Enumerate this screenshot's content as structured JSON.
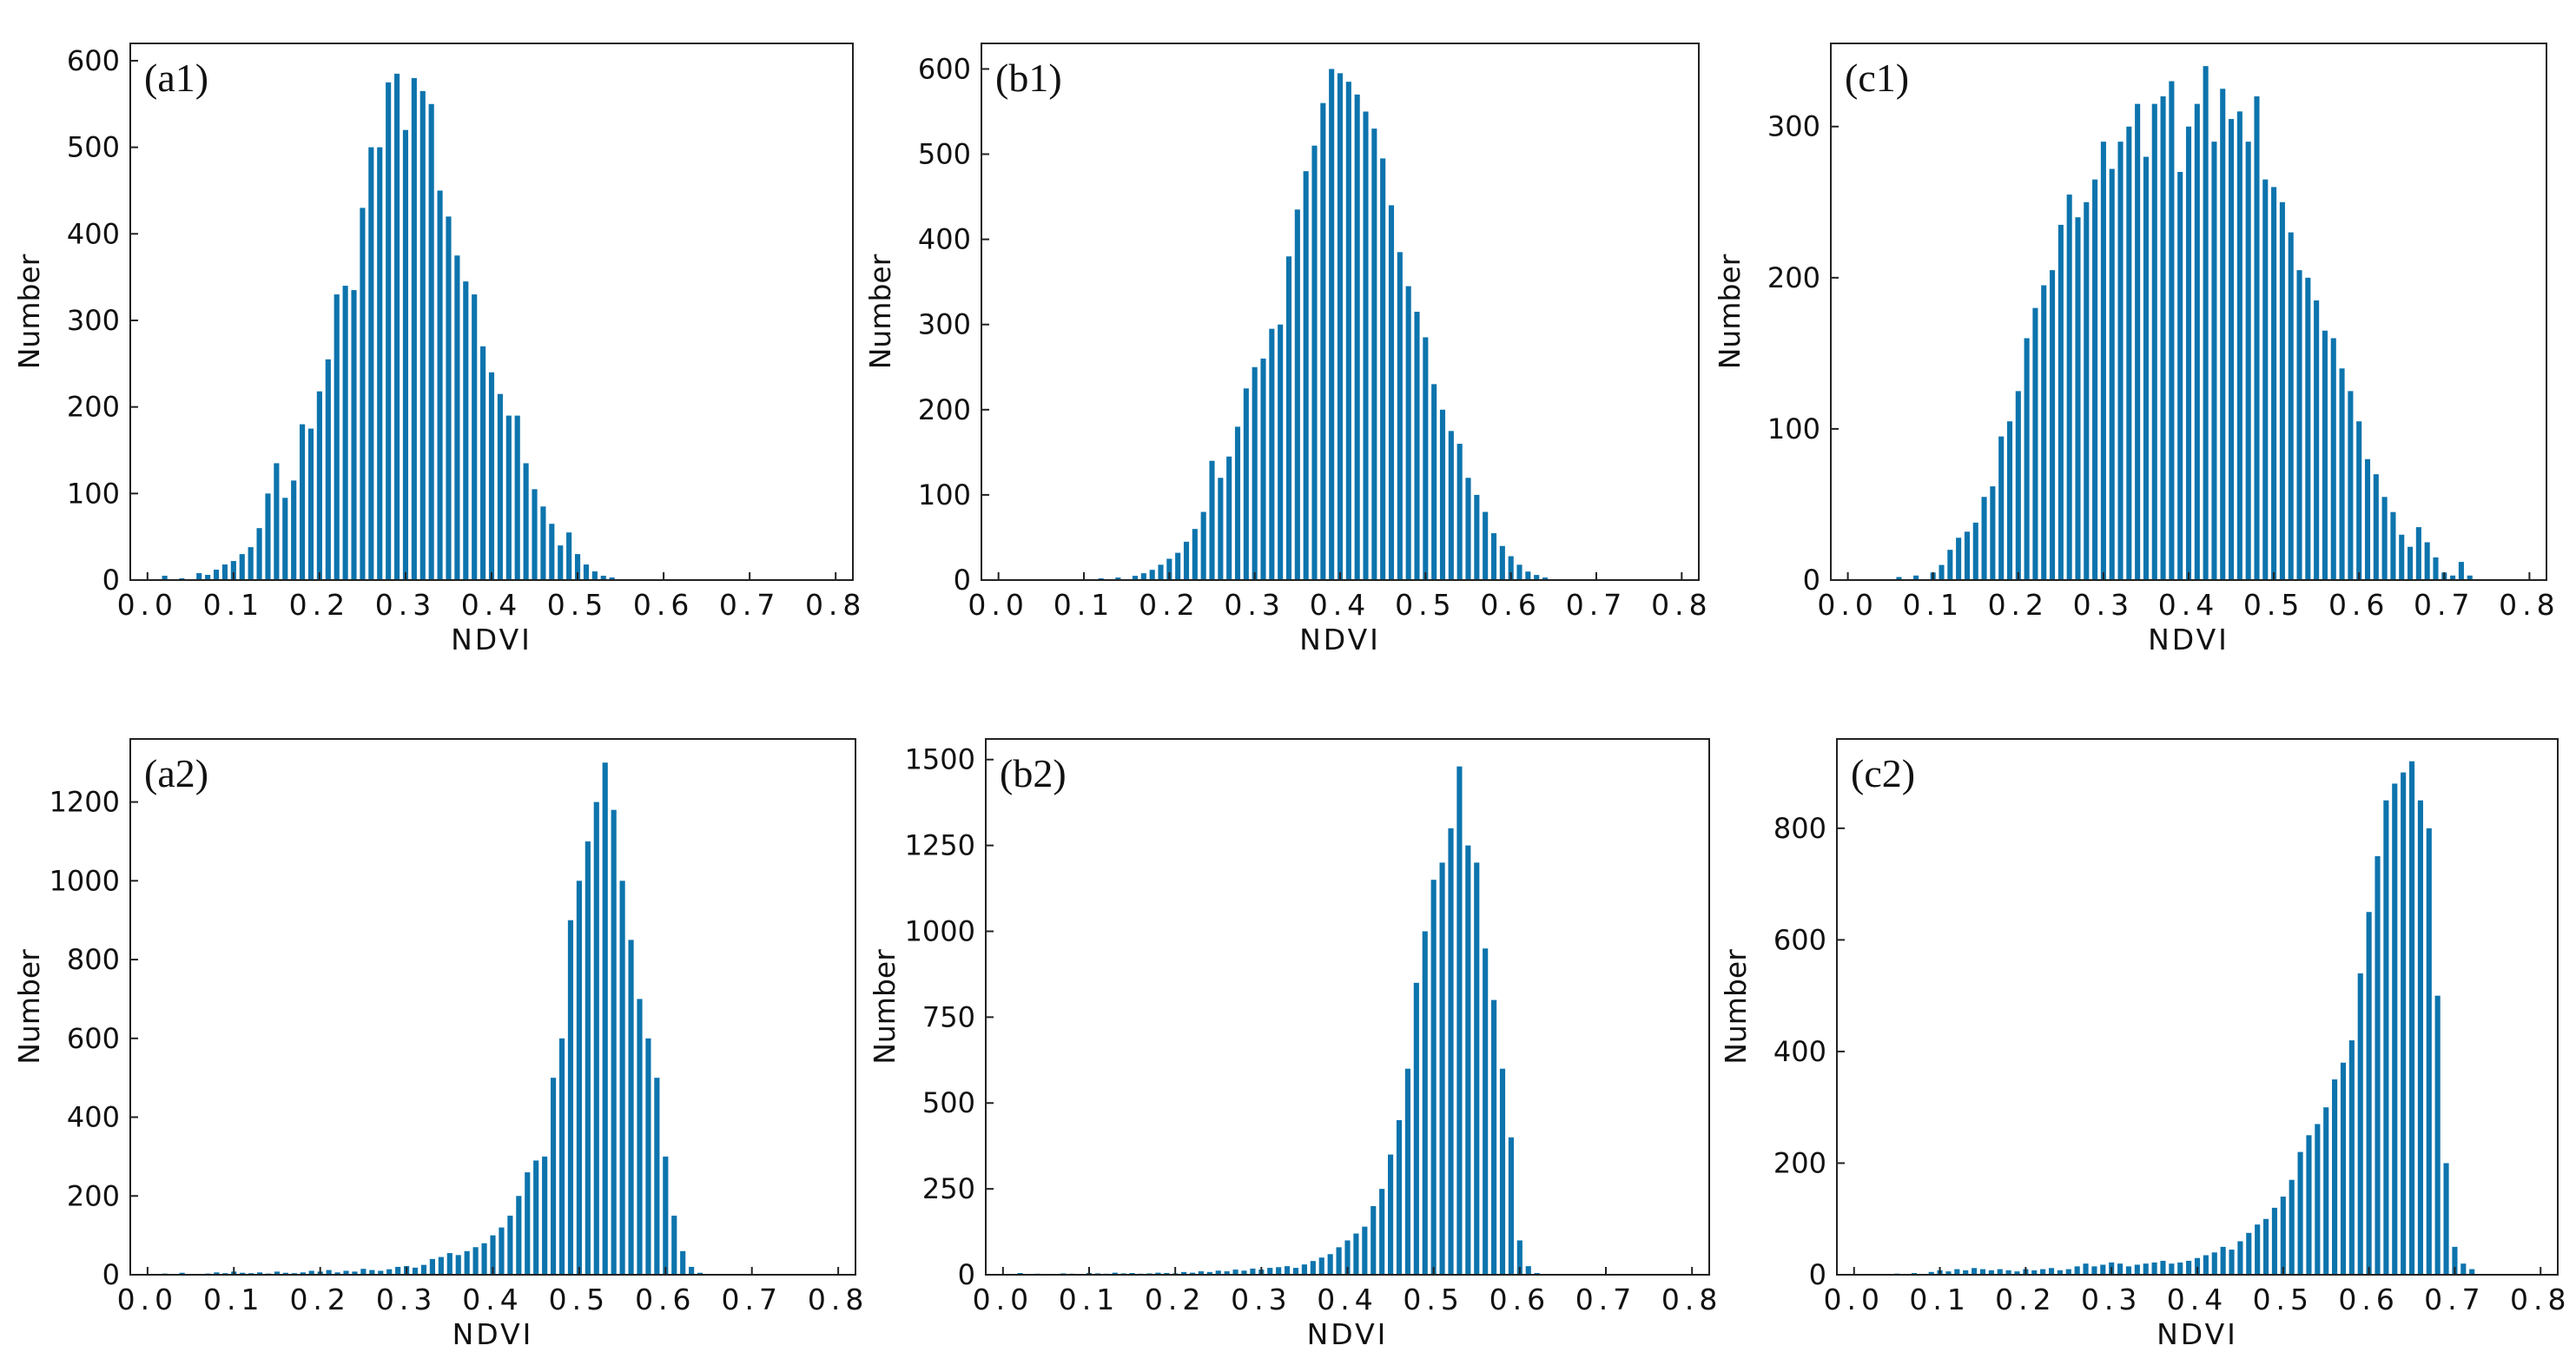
{
  "chart_data": [
    {
      "id": "a1",
      "type": "bar",
      "panel_label": "(a1)",
      "xlabel": "NDVI",
      "ylabel": "Number",
      "xlim": [
        -0.02,
        0.82
      ],
      "ylim": [
        0,
        620
      ],
      "bin_width": 0.01,
      "xticks": [
        0.0,
        0.1,
        0.2,
        0.3,
        0.4,
        0.5,
        0.6,
        0.7,
        0.8
      ],
      "xtick_labels": [
        "0.0",
        "0.1",
        "0.2",
        "0.3",
        "0.4",
        "0.5",
        "0.6",
        "0.7",
        "0.8"
      ],
      "yticks": [
        0,
        100,
        200,
        300,
        400,
        500,
        600
      ],
      "ytick_labels": [
        "0",
        "100",
        "200",
        "300",
        "400",
        "500",
        "600"
      ],
      "color": "#0d74ad",
      "grid": false,
      "x_start": 0.02,
      "values": [
        5,
        0,
        2,
        0,
        8,
        6,
        12,
        18,
        22,
        30,
        38,
        60,
        100,
        135,
        95,
        115,
        180,
        175,
        218,
        255,
        330,
        340,
        335,
        430,
        500,
        500,
        575,
        585,
        520,
        580,
        565,
        550,
        450,
        420,
        375,
        345,
        330,
        270,
        240,
        215,
        190,
        190,
        135,
        105,
        85,
        65,
        40,
        55,
        30,
        18,
        10,
        5,
        3
      ]
    },
    {
      "id": "b1",
      "type": "bar",
      "panel_label": "(b1)",
      "xlabel": "NDVI",
      "ylabel": "Number",
      "xlim": [
        -0.02,
        0.82
      ],
      "ylim": [
        0,
        630
      ],
      "bin_width": 0.01,
      "xticks": [
        0.0,
        0.1,
        0.2,
        0.3,
        0.4,
        0.5,
        0.6,
        0.7,
        0.8
      ],
      "xtick_labels": [
        "0.0",
        "0.1",
        "0.2",
        "0.3",
        "0.4",
        "0.5",
        "0.6",
        "0.7",
        "0.8"
      ],
      "yticks": [
        0,
        100,
        200,
        300,
        400,
        500,
        600
      ],
      "ytick_labels": [
        "0",
        "100",
        "200",
        "300",
        "400",
        "500",
        "600"
      ],
      "color": "#0d74ad",
      "grid": false,
      "x_start": 0.12,
      "values": [
        2,
        0,
        3,
        0,
        5,
        8,
        12,
        18,
        25,
        32,
        45,
        60,
        80,
        140,
        120,
        145,
        180,
        225,
        250,
        260,
        295,
        300,
        380,
        435,
        480,
        510,
        560,
        600,
        595,
        585,
        570,
        550,
        530,
        495,
        440,
        385,
        345,
        315,
        285,
        230,
        200,
        175,
        160,
        120,
        100,
        80,
        55,
        40,
        28,
        18,
        10,
        6,
        3
      ]
    },
    {
      "id": "c1",
      "type": "bar",
      "panel_label": "(c1)",
      "xlabel": "NDVI",
      "ylabel": "Number",
      "xlim": [
        -0.02,
        0.82
      ],
      "ylim": [
        0,
        355
      ],
      "bin_width": 0.01,
      "xticks": [
        0.0,
        0.1,
        0.2,
        0.3,
        0.4,
        0.5,
        0.6,
        0.7,
        0.8
      ],
      "xtick_labels": [
        "0.0",
        "0.1",
        "0.2",
        "0.3",
        "0.4",
        "0.5",
        "0.6",
        "0.7",
        "0.8"
      ],
      "yticks": [
        0,
        100,
        200,
        300
      ],
      "ytick_labels": [
        "0",
        "100",
        "200",
        "300"
      ],
      "color": "#0d74ad",
      "grid": false,
      "x_start": 0.06,
      "values": [
        2,
        0,
        3,
        0,
        5,
        10,
        20,
        28,
        32,
        38,
        55,
        62,
        95,
        105,
        125,
        160,
        180,
        195,
        205,
        235,
        255,
        240,
        250,
        265,
        290,
        272,
        290,
        300,
        315,
        280,
        315,
        320,
        330,
        270,
        300,
        315,
        340,
        290,
        325,
        305,
        310,
        290,
        320,
        265,
        260,
        250,
        230,
        205,
        200,
        185,
        165,
        160,
        140,
        125,
        105,
        80,
        70,
        55,
        45,
        30,
        22,
        35,
        25,
        15,
        5,
        3,
        12,
        3
      ]
    },
    {
      "id": "a2",
      "type": "bar",
      "panel_label": "(a2)",
      "xlabel": "NDVI",
      "ylabel": "Number",
      "xlim": [
        -0.02,
        0.82
      ],
      "ylim": [
        0,
        1360
      ],
      "bin_width": 0.01,
      "xticks": [
        0.0,
        0.1,
        0.2,
        0.3,
        0.4,
        0.5,
        0.6,
        0.7,
        0.8
      ],
      "xtick_labels": [
        "0.0",
        "0.1",
        "0.2",
        "0.3",
        "0.4",
        "0.5",
        "0.6",
        "0.7",
        "0.8"
      ],
      "yticks": [
        0,
        200,
        400,
        600,
        800,
        1000,
        1200
      ],
      "ytick_labels": [
        "0",
        "200",
        "400",
        "600",
        "800",
        "1000",
        "1200"
      ],
      "color": "#0d74ad",
      "grid": false,
      "x_start": 0.02,
      "values": [
        3,
        0,
        5,
        0,
        2,
        3,
        6,
        4,
        8,
        5,
        4,
        6,
        3,
        8,
        5,
        4,
        6,
        10,
        8,
        12,
        6,
        10,
        8,
        15,
        12,
        10,
        14,
        20,
        22,
        18,
        25,
        40,
        45,
        55,
        50,
        60,
        70,
        80,
        100,
        120,
        150,
        200,
        260,
        290,
        300,
        500,
        600,
        900,
        1000,
        1100,
        1200,
        1300,
        1180,
        1000,
        850,
        700,
        600,
        500,
        300,
        150,
        60,
        20,
        5
      ]
    },
    {
      "id": "b2",
      "type": "bar",
      "panel_label": "(b2)",
      "xlabel": "NDVI",
      "ylabel": "Number",
      "xlim": [
        -0.02,
        0.82
      ],
      "ylim": [
        0,
        1560
      ],
      "bin_width": 0.01,
      "xticks": [
        0.0,
        0.1,
        0.2,
        0.3,
        0.4,
        0.5,
        0.6,
        0.7,
        0.8
      ],
      "xtick_labels": [
        "0.0",
        "0.1",
        "0.2",
        "0.3",
        "0.4",
        "0.5",
        "0.6",
        "0.7",
        "0.8"
      ],
      "yticks": [
        0,
        250,
        500,
        750,
        1000,
        1250,
        1500
      ],
      "ytick_labels": [
        "0",
        "250",
        "500",
        "750",
        "1000",
        "1250",
        "1500"
      ],
      "color": "#0d74ad",
      "grid": false,
      "x_start": 0.02,
      "values": [
        5,
        0,
        3,
        0,
        2,
        4,
        3,
        2,
        5,
        4,
        3,
        6,
        4,
        5,
        3,
        4,
        6,
        5,
        4,
        8,
        6,
        10,
        8,
        12,
        10,
        15,
        12,
        18,
        15,
        20,
        22,
        25,
        20,
        30,
        40,
        50,
        60,
        80,
        100,
        120,
        140,
        200,
        250,
        350,
        450,
        600,
        850,
        1000,
        1150,
        1200,
        1300,
        1480,
        1250,
        1200,
        950,
        800,
        600,
        400,
        100,
        25,
        5
      ]
    },
    {
      "id": "c2",
      "type": "bar",
      "panel_label": "(c2)",
      "xlabel": "NDVI",
      "ylabel": "Number",
      "xlim": [
        -0.02,
        0.82
      ],
      "ylim": [
        0,
        960
      ],
      "bin_width": 0.01,
      "xticks": [
        0.0,
        0.1,
        0.2,
        0.3,
        0.4,
        0.5,
        0.6,
        0.7,
        0.8
      ],
      "xtick_labels": [
        "0.0",
        "0.1",
        "0.2",
        "0.3",
        "0.4",
        "0.5",
        "0.6",
        "0.7",
        "0.8"
      ],
      "yticks": [
        0,
        200,
        400,
        600,
        800
      ],
      "ytick_labels": [
        "0",
        "200",
        "400",
        "600",
        "800"
      ],
      "color": "#0d74ad",
      "grid": false,
      "x_start": 0.05,
      "values": [
        2,
        0,
        3,
        0,
        5,
        8,
        6,
        10,
        8,
        12,
        10,
        8,
        10,
        8,
        6,
        10,
        8,
        10,
        12,
        8,
        10,
        15,
        20,
        15,
        18,
        22,
        20,
        15,
        18,
        20,
        22,
        25,
        20,
        22,
        25,
        30,
        35,
        40,
        50,
        45,
        60,
        75,
        90,
        100,
        120,
        140,
        170,
        220,
        250,
        270,
        300,
        350,
        380,
        420,
        540,
        650,
        750,
        850,
        880,
        900,
        920,
        850,
        800,
        500,
        200,
        50,
        20,
        10
      ]
    }
  ]
}
